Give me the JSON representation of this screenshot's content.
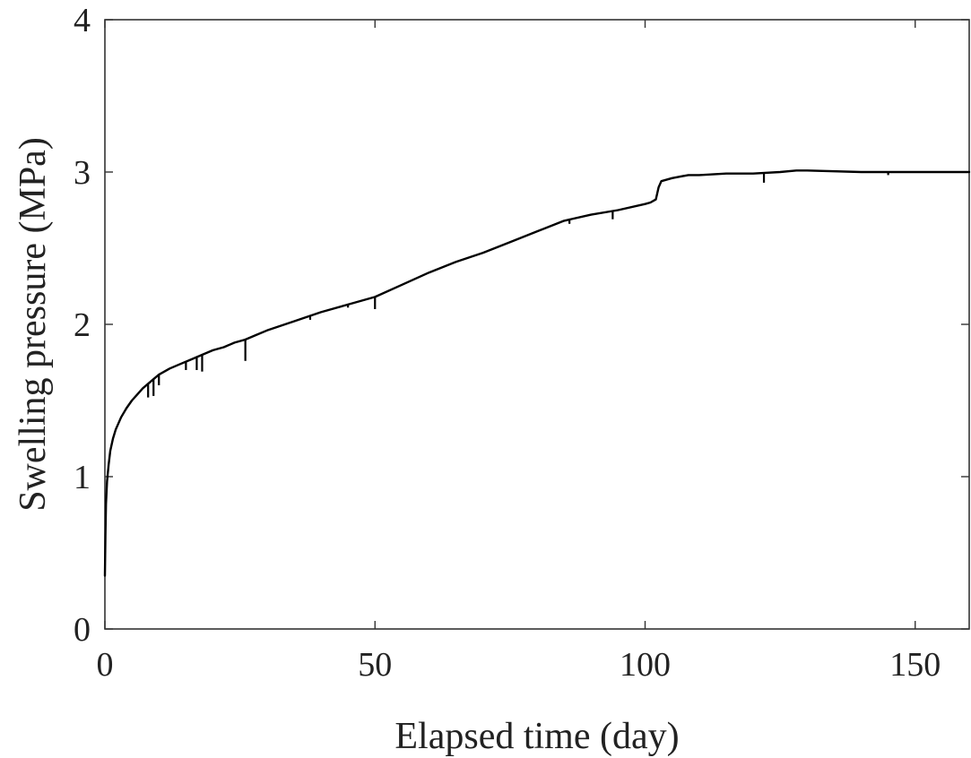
{
  "chart_data": {
    "type": "line",
    "title": "",
    "xlabel": "Elapsed time (day)",
    "ylabel": "Swelling pressure (MPa)",
    "xlim": [
      0,
      160
    ],
    "ylim": [
      0,
      4
    ],
    "xticks": [
      0,
      50,
      100,
      150
    ],
    "yticks": [
      0,
      1,
      2,
      3,
      4
    ],
    "grid": false,
    "legend": "none",
    "series": [
      {
        "color": "#000000",
        "x": [
          0,
          0.1,
          0.2,
          0.4,
          0.7,
          1,
          1.5,
          2,
          3,
          4,
          5,
          6,
          7,
          8,
          9,
          10,
          12,
          14,
          16,
          18,
          20,
          22,
          24,
          26,
          28,
          30,
          35,
          40,
          45,
          50,
          55,
          60,
          65,
          70,
          75,
          80,
          85,
          90,
          95,
          100,
          101,
          102,
          102.5,
          103,
          105,
          108,
          110,
          115,
          120,
          125,
          128,
          130,
          140,
          150,
          160
        ],
        "y": [
          0.35,
          0.62,
          0.82,
          0.97,
          1.08,
          1.17,
          1.25,
          1.31,
          1.39,
          1.45,
          1.5,
          1.54,
          1.58,
          1.61,
          1.64,
          1.67,
          1.71,
          1.74,
          1.77,
          1.8,
          1.83,
          1.85,
          1.88,
          1.9,
          1.93,
          1.96,
          2.02,
          2.08,
          2.13,
          2.18,
          2.26,
          2.34,
          2.41,
          2.47,
          2.54,
          2.61,
          2.68,
          2.72,
          2.75,
          2.79,
          2.8,
          2.82,
          2.9,
          2.94,
          2.96,
          2.98,
          2.98,
          2.99,
          2.99,
          3.0,
          3.01,
          3.01,
          3.0,
          3.0,
          3.0
        ]
      }
    ],
    "dips": [
      {
        "x": 8,
        "y": 1.52
      },
      {
        "x": 9,
        "y": 1.53
      },
      {
        "x": 10,
        "y": 1.6
      },
      {
        "x": 15,
        "y": 1.7
      },
      {
        "x": 17,
        "y": 1.7
      },
      {
        "x": 18,
        "y": 1.69
      },
      {
        "x": 26,
        "y": 1.76
      },
      {
        "x": 38,
        "y": 2.03
      },
      {
        "x": 45,
        "y": 2.11
      },
      {
        "x": 50,
        "y": 2.1
      },
      {
        "x": 86,
        "y": 2.66
      },
      {
        "x": 94,
        "y": 2.69
      },
      {
        "x": 122,
        "y": 2.93
      },
      {
        "x": 145,
        "y": 2.98
      }
    ]
  }
}
